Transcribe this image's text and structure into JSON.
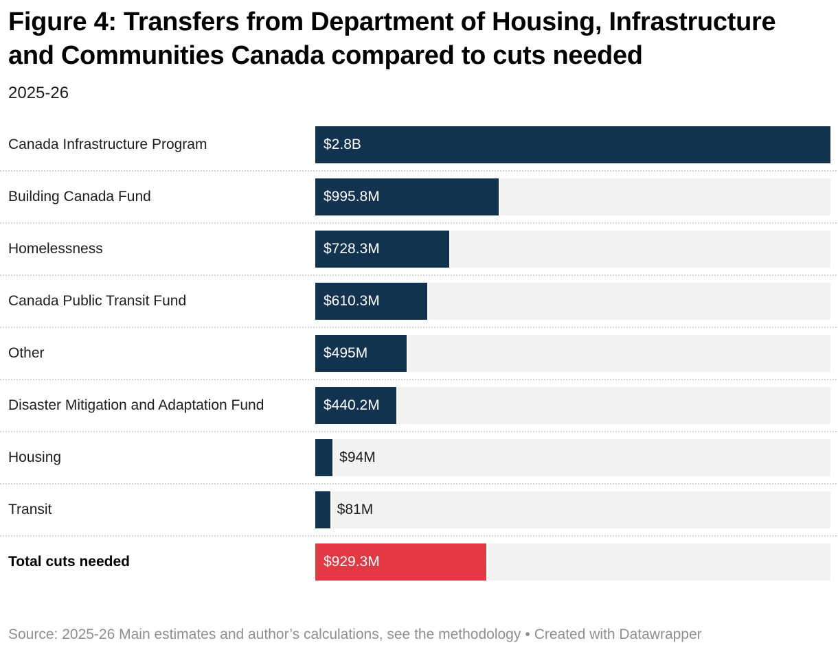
{
  "chart_data": {
    "type": "bar",
    "orientation": "horizontal",
    "title": "Figure 4: Transfers from Department of Housing, Infrastructure and Communities Canada compared to cuts needed",
    "subtitle": "2025-26",
    "value_axis": {
      "min_millions": 0,
      "max_millions": 2800,
      "gridlines": false,
      "axis_hidden": true
    },
    "colors": {
      "bar_default": "#123350",
      "bar_highlight": "#e23942",
      "track": "#f2f2f2",
      "separator": "#d2d2d2"
    },
    "legend_position": "none",
    "rows": [
      {
        "label": "Canada Infrastructure Program",
        "value_millions": 2800,
        "display_value": "$2.8B",
        "role": "default",
        "label_position": "inside",
        "bold": false
      },
      {
        "label": "Building Canada Fund",
        "value_millions": 995.8,
        "display_value": "$995.8M",
        "role": "default",
        "label_position": "inside",
        "bold": false
      },
      {
        "label": "Homelessness",
        "value_millions": 728.3,
        "display_value": "$728.3M",
        "role": "default",
        "label_position": "inside",
        "bold": false
      },
      {
        "label": "Canada Public Transit Fund",
        "value_millions": 610.3,
        "display_value": "$610.3M",
        "role": "default",
        "label_position": "inside",
        "bold": false
      },
      {
        "label": "Other",
        "value_millions": 495,
        "display_value": "$495M",
        "role": "default",
        "label_position": "inside",
        "bold": false
      },
      {
        "label": "Disaster Mitigation and Adaptation Fund",
        "value_millions": 440.2,
        "display_value": "$440.2M",
        "role": "default",
        "label_position": "inside",
        "bold": false
      },
      {
        "label": "Housing",
        "value_millions": 94,
        "display_value": "$94M",
        "role": "default",
        "label_position": "outside",
        "bold": false
      },
      {
        "label": "Transit",
        "value_millions": 81,
        "display_value": "$81M",
        "role": "default",
        "label_position": "outside",
        "bold": false
      },
      {
        "label": "Total cuts needed",
        "value_millions": 929.3,
        "display_value": "$929.3M",
        "role": "highlight",
        "label_position": "inside",
        "bold": true
      }
    ]
  },
  "footer": {
    "source_text": "Source: 2025-26 Main estimates and author’s calculations, see the methodology",
    "separator": "•",
    "attribution": "Created with Datawrapper"
  }
}
